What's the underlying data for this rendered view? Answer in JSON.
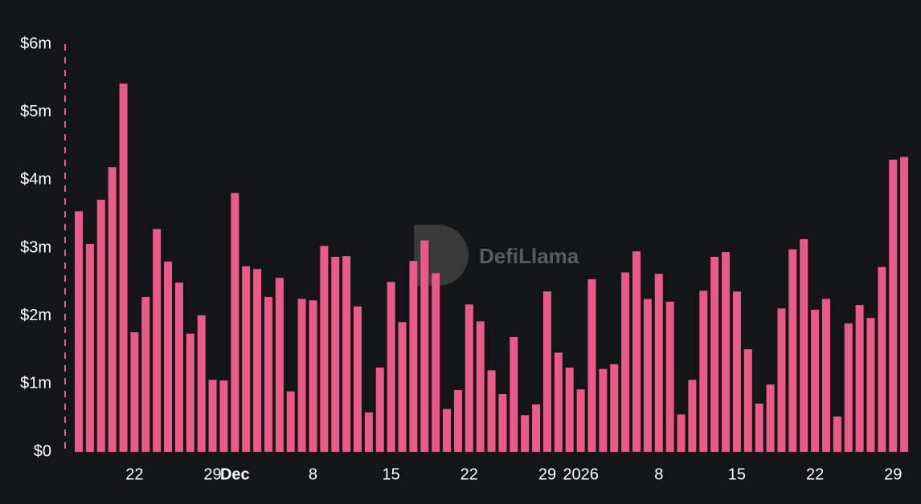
{
  "chart_data": {
    "type": "bar",
    "watermark": "DefiLlama",
    "categories": [
      null,
      null,
      null,
      null,
      null,
      "22",
      null,
      null,
      null,
      null,
      null,
      null,
      "29",
      null,
      "Dec",
      null,
      null,
      null,
      null,
      null,
      null,
      "8",
      null,
      null,
      null,
      null,
      null,
      null,
      "15",
      null,
      null,
      null,
      null,
      null,
      null,
      "22",
      null,
      null,
      null,
      null,
      null,
      null,
      "29",
      null,
      null,
      "2026",
      null,
      null,
      null,
      null,
      null,
      null,
      "8",
      null,
      null,
      null,
      null,
      null,
      null,
      "15",
      null,
      null,
      null,
      null,
      null,
      null,
      "22",
      null,
      null,
      null,
      null,
      null,
      null,
      "29",
      null
    ],
    "values": [
      3.54,
      3.06,
      3.71,
      4.19,
      5.42,
      1.76,
      2.28,
      3.28,
      2.8,
      2.49,
      1.74,
      2.01,
      1.06,
      1.05,
      3.81,
      2.73,
      2.69,
      2.28,
      2.56,
      0.89,
      2.25,
      2.23,
      3.03,
      2.87,
      2.88,
      2.14,
      0.58,
      1.24,
      2.5,
      1.91,
      2.81,
      3.11,
      2.63,
      0.63,
      0.91,
      2.17,
      1.92,
      1.2,
      0.85,
      1.69,
      0.54,
      0.7,
      2.36,
      1.46,
      1.24,
      0.92,
      2.54,
      1.22,
      1.29,
      2.64,
      2.95,
      2.25,
      2.62,
      2.21,
      0.55,
      1.06,
      2.37,
      2.87,
      2.94,
      2.36,
      1.51,
      0.71,
      0.99,
      2.11,
      2.98,
      3.13,
      2.09,
      2.25,
      0.52,
      1.89,
      2.16,
      1.97,
      2.72,
      4.3,
      4.34
    ],
    "color": "#ea5a88",
    "ylim": [
      0,
      6
    ],
    "yticks": [
      {
        "value": 0,
        "label": "$0"
      },
      {
        "value": 1,
        "label": "$1m"
      },
      {
        "value": 2,
        "label": "$2m"
      },
      {
        "value": 3,
        "label": "$3m"
      },
      {
        "value": 4,
        "label": "$4m"
      },
      {
        "value": 5,
        "label": "$5m"
      },
      {
        "value": 6,
        "label": "$6m"
      }
    ],
    "grid": false
  }
}
